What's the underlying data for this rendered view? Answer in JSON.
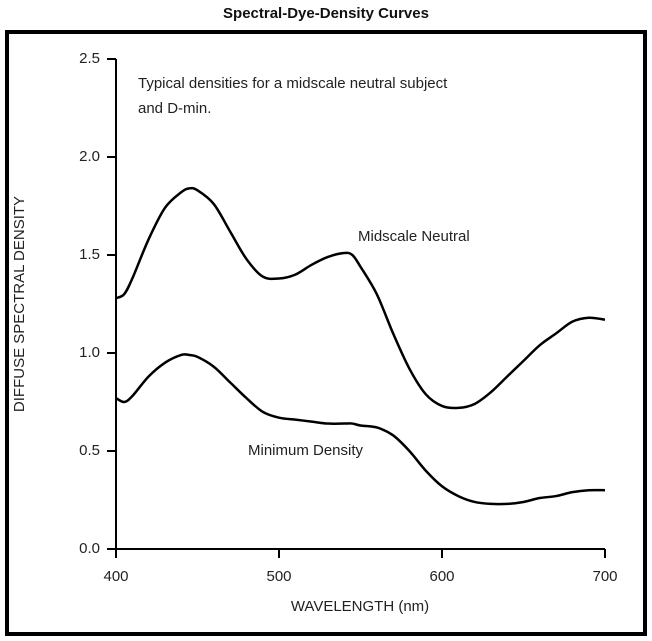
{
  "chart_data": {
    "type": "line",
    "title": "Spectral-Dye-Density Curves",
    "xlabel": "WAVELENGTH (nm)",
    "ylabel": "DIFFUSE SPECTRAL DENSITY",
    "annotation": [
      "Typical densities for a midscale neutral subject",
      "and D-min."
    ],
    "x": [
      400,
      405,
      410,
      420,
      430,
      440,
      445,
      450,
      460,
      470,
      480,
      490,
      500,
      510,
      520,
      530,
      540,
      545,
      550,
      560,
      570,
      580,
      590,
      600,
      610,
      620,
      630,
      640,
      650,
      660,
      670,
      680,
      690,
      700
    ],
    "series": [
      {
        "name": "Midscale Neutral",
        "color": "#000000",
        "values": [
          1.28,
          1.3,
          1.38,
          1.58,
          1.74,
          1.82,
          1.84,
          1.83,
          1.76,
          1.62,
          1.48,
          1.39,
          1.38,
          1.4,
          1.45,
          1.49,
          1.51,
          1.5,
          1.44,
          1.3,
          1.1,
          0.92,
          0.79,
          0.73,
          0.72,
          0.74,
          0.8,
          0.88,
          0.96,
          1.04,
          1.1,
          1.16,
          1.18,
          1.17
        ]
      },
      {
        "name": "Minimum Density",
        "color": "#000000",
        "values": [
          0.77,
          0.75,
          0.78,
          0.88,
          0.95,
          0.99,
          0.99,
          0.98,
          0.93,
          0.85,
          0.77,
          0.7,
          0.67,
          0.66,
          0.65,
          0.64,
          0.64,
          0.64,
          0.63,
          0.62,
          0.58,
          0.5,
          0.4,
          0.32,
          0.27,
          0.24,
          0.23,
          0.23,
          0.24,
          0.26,
          0.27,
          0.29,
          0.3,
          0.3
        ]
      }
    ],
    "xlim": [
      400,
      700
    ],
    "xticks": [
      400,
      500,
      600,
      700
    ],
    "ylim": [
      0,
      2.5
    ],
    "yticks": [
      {
        "value": 0,
        "label": "0.0"
      },
      0.5,
      {
        "value": 1,
        "label": "1.0"
      },
      1.5,
      {
        "value": 2,
        "label": "2.0"
      },
      2.5
    ]
  }
}
